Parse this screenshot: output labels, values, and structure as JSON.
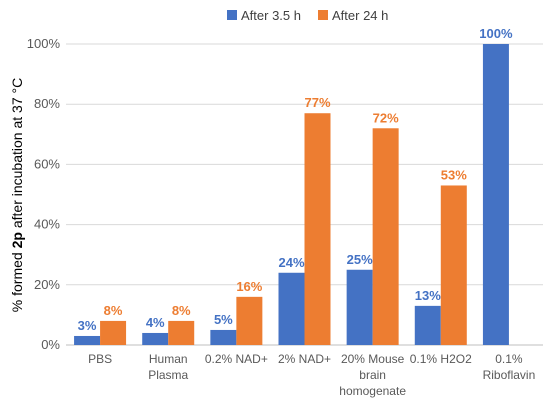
{
  "chart_data": {
    "type": "bar",
    "categories": [
      [
        "PBS"
      ],
      [
        "Human",
        "Plasma"
      ],
      [
        "0.2% NAD+"
      ],
      [
        "2% NAD+"
      ],
      [
        "20% Mouse",
        "brain",
        "homogenate"
      ],
      [
        "0.1% H2O2"
      ],
      [
        "0.1%",
        "Riboflavin"
      ]
    ],
    "series": [
      {
        "name": "After 3.5 h",
        "color": "#4472C4",
        "values": [
          3,
          4,
          5,
          24,
          25,
          13,
          100
        ],
        "labels": [
          "3%",
          "4%",
          "5%",
          "24%",
          "25%",
          "13%",
          "100%"
        ]
      },
      {
        "name": "After 24 h",
        "color": "#ED7D31",
        "values": [
          8,
          8,
          16,
          77,
          72,
          53,
          null
        ],
        "labels": [
          "8%",
          "8%",
          "16%",
          "77%",
          "72%",
          "53%",
          ""
        ]
      }
    ],
    "ylabel": {
      "pre": "% formed ",
      "bold": "2p",
      "post": " after incubation at 37 °C"
    },
    "ylim": [
      0,
      100
    ],
    "yticks": [
      0,
      20,
      40,
      60,
      80,
      100
    ],
    "ytick_labels": [
      "0%",
      "20%",
      "40%",
      "60%",
      "80%",
      "100%"
    ],
    "legend_position": "top",
    "grid": true
  }
}
